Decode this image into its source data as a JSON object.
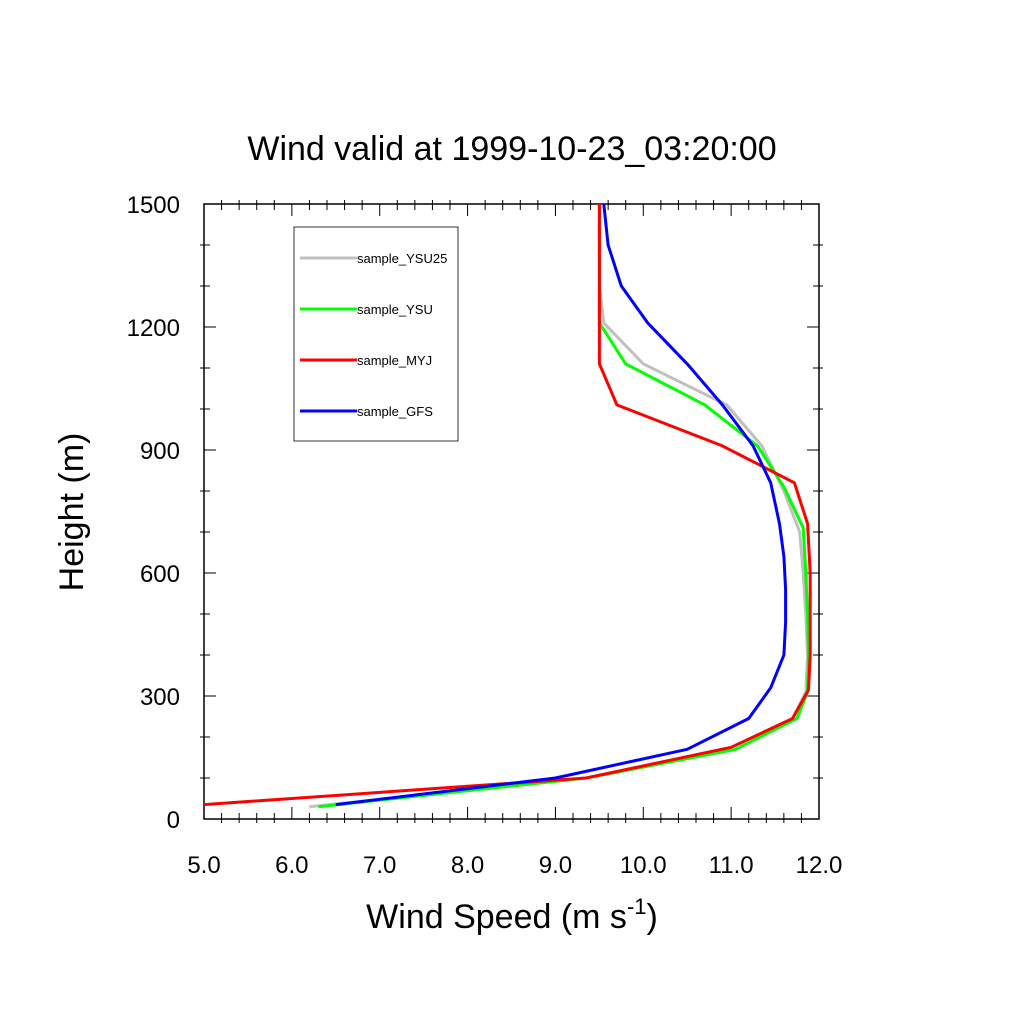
{
  "chart_data": {
    "type": "line",
    "title": "Wind valid at 1999-10-23_03:20:00",
    "xlabel": "Wind Speed (m s",
    "xlabel_superscript": "-1",
    "xlabel_suffix": ")",
    "ylabel": "Height (m)",
    "xlim": [
      5.0,
      12.0
    ],
    "ylim": [
      0,
      1500
    ],
    "x_ticks": [
      5.0,
      6.0,
      7.0,
      8.0,
      9.0,
      10.0,
      11.0,
      12.0
    ],
    "x_tick_labels": [
      "5.0",
      "6.0",
      "7.0",
      "8.0",
      "9.0",
      "10.0",
      "11.0",
      "12.0"
    ],
    "y_ticks": [
      0,
      300,
      600,
      900,
      1200,
      1500
    ],
    "y_tick_labels": [
      "0",
      "300",
      "600",
      "900",
      "1200",
      "1500"
    ],
    "grid": false,
    "legend_position": "top-left",
    "series": [
      {
        "name": "sample_YSU25",
        "color": "#c0c0c0",
        "points": [
          [
            6.2,
            30
          ],
          [
            9.35,
            100
          ],
          [
            11.05,
            170
          ],
          [
            11.7,
            245
          ],
          [
            11.85,
            310
          ],
          [
            11.87,
            400
          ],
          [
            11.85,
            500
          ],
          [
            11.82,
            600
          ],
          [
            11.78,
            700
          ],
          [
            11.6,
            800
          ],
          [
            11.35,
            910
          ],
          [
            10.95,
            1010
          ],
          [
            10.0,
            1110
          ],
          [
            9.55,
            1210
          ],
          [
            9.5,
            1300
          ],
          [
            9.5,
            1400
          ],
          [
            9.5,
            1500
          ]
        ]
      },
      {
        "name": "sample_YSU",
        "color": "#00ff00",
        "points": [
          [
            6.3,
            30
          ],
          [
            9.35,
            100
          ],
          [
            11.05,
            170
          ],
          [
            11.75,
            245
          ],
          [
            11.87,
            310
          ],
          [
            11.88,
            400
          ],
          [
            11.87,
            500
          ],
          [
            11.85,
            600
          ],
          [
            11.82,
            710
          ],
          [
            11.6,
            810
          ],
          [
            11.3,
            910
          ],
          [
            10.7,
            1010
          ],
          [
            9.8,
            1110
          ],
          [
            9.5,
            1210
          ],
          [
            9.5,
            1300
          ],
          [
            9.5,
            1400
          ],
          [
            9.5,
            1500
          ]
        ]
      },
      {
        "name": "sample_MYJ",
        "color": "#ff0000",
        "points": [
          [
            5.0,
            35
          ],
          [
            9.35,
            100
          ],
          [
            11.0,
            175
          ],
          [
            11.7,
            245
          ],
          [
            11.88,
            315
          ],
          [
            11.9,
            400
          ],
          [
            11.9,
            500
          ],
          [
            11.9,
            600
          ],
          [
            11.87,
            720
          ],
          [
            11.72,
            820
          ],
          [
            10.9,
            910
          ],
          [
            9.7,
            1010
          ],
          [
            9.5,
            1110
          ],
          [
            9.5,
            1210
          ],
          [
            9.5,
            1300
          ],
          [
            9.5,
            1400
          ],
          [
            9.5,
            1500
          ]
        ]
      },
      {
        "name": "sample_GFS",
        "color": "#0000ff",
        "points": [
          [
            6.5,
            35
          ],
          [
            9.0,
            100
          ],
          [
            10.5,
            170
          ],
          [
            11.2,
            245
          ],
          [
            11.45,
            320
          ],
          [
            11.6,
            400
          ],
          [
            11.62,
            480
          ],
          [
            11.62,
            560
          ],
          [
            11.6,
            640
          ],
          [
            11.55,
            720
          ],
          [
            11.45,
            820
          ],
          [
            11.25,
            910
          ],
          [
            10.9,
            1010
          ],
          [
            10.5,
            1110
          ],
          [
            10.05,
            1210
          ],
          [
            9.75,
            1300
          ],
          [
            9.6,
            1400
          ],
          [
            9.55,
            1500
          ]
        ]
      }
    ]
  }
}
